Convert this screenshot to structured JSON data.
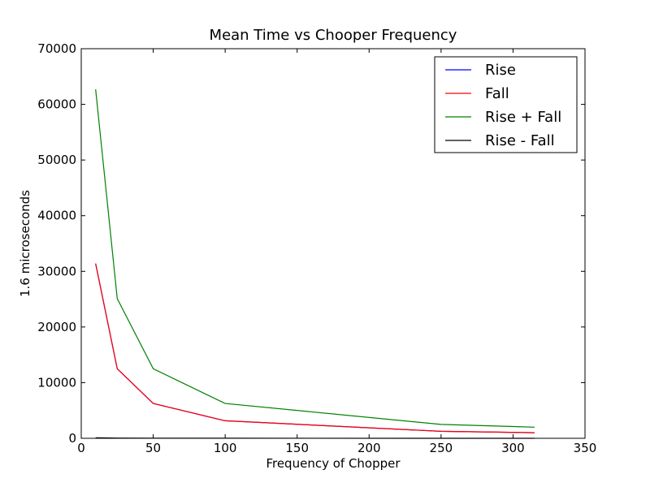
{
  "chart_data": {
    "type": "line",
    "title": "Mean Time vs Chooper Frequency",
    "xlabel": "Frequency of Chopper",
    "ylabel": "1.6 microseconds",
    "xlim": [
      0,
      350
    ],
    "ylim": [
      0,
      70000
    ],
    "xticks": [
      0,
      50,
      100,
      150,
      200,
      250,
      300,
      350
    ],
    "yticks": [
      0,
      10000,
      20000,
      30000,
      40000,
      50000,
      60000,
      70000
    ],
    "grid": false,
    "legend_position": "top-right",
    "x": [
      10,
      25,
      50,
      100,
      250,
      315
    ],
    "series": [
      {
        "name": "Rise",
        "color": "#0000ff",
        "values": [
          31400,
          12500,
          6250,
          3150,
          1250,
          1000
        ]
      },
      {
        "name": "Fall",
        "color": "#ff0000",
        "values": [
          31400,
          12500,
          6250,
          3150,
          1250,
          1000
        ]
      },
      {
        "name": "Rise + Fall",
        "color": "#008000",
        "values": [
          62700,
          25100,
          12500,
          6250,
          2500,
          2000
        ]
      },
      {
        "name": "Rise - Fall",
        "color": "#000000",
        "values": [
          100,
          50,
          20,
          10,
          5,
          5
        ]
      }
    ]
  }
}
